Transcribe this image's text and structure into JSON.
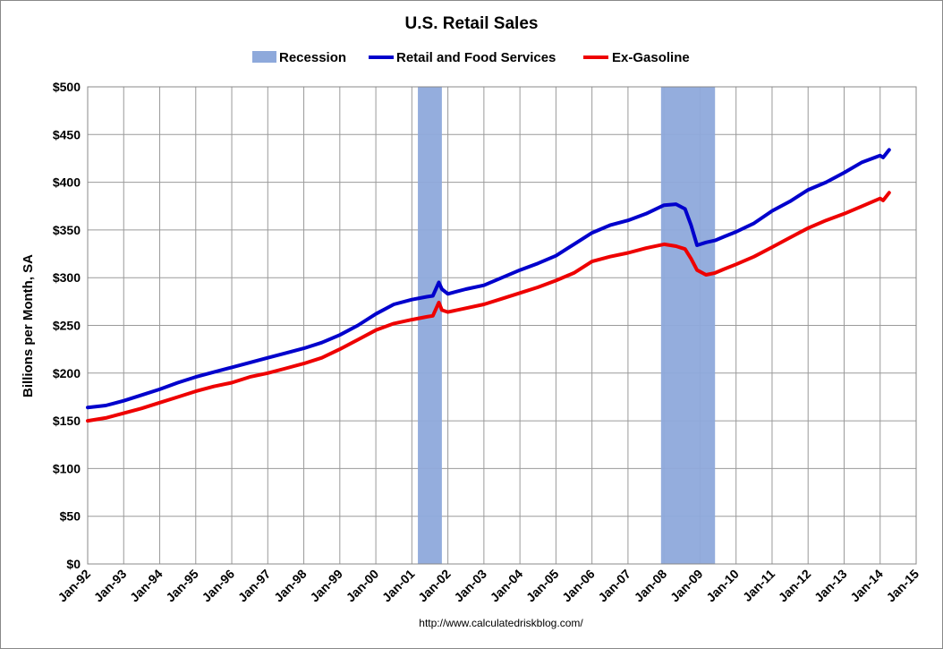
{
  "chart_data": {
    "type": "line",
    "title": "U.S. Retail Sales",
    "ylabel": "Billions per Month, SA",
    "xlabel": "",
    "source": "http://www.calculatedriskblog.com/",
    "ylim": [
      0,
      500
    ],
    "yticks": [
      0,
      50,
      100,
      150,
      200,
      250,
      300,
      350,
      400,
      450,
      500
    ],
    "ytick_labels": [
      "$0",
      "$50",
      "$100",
      "$150",
      "$200",
      "$250",
      "$300",
      "$350",
      "$400",
      "$450",
      "$500"
    ],
    "xlim": [
      "1992-01",
      "2015-01"
    ],
    "xtick_labels": [
      "Jan-92",
      "Jan-93",
      "Jan-94",
      "Jan-95",
      "Jan-96",
      "Jan-97",
      "Jan-98",
      "Jan-99",
      "Jan-00",
      "Jan-01",
      "Jan-02",
      "Jan-03",
      "Jan-04",
      "Jan-05",
      "Jan-06",
      "Jan-07",
      "Jan-08",
      "Jan-09",
      "Jan-10",
      "Jan-11",
      "Jan-12",
      "Jan-13",
      "Jan-14",
      "Jan-15"
    ],
    "grid": true,
    "legend_position": "top",
    "legend": [
      {
        "name": "Recession",
        "kind": "band",
        "color": "#8EA9DB"
      },
      {
        "name": "Retail and Food Services",
        "kind": "line",
        "color": "#0000CC"
      },
      {
        "name": "Ex-Gasoline",
        "kind": "line",
        "color": "#EE0000"
      }
    ],
    "recessions": [
      {
        "start": "2001-03",
        "end": "2001-11"
      },
      {
        "start": "2007-12",
        "end": "2009-06"
      }
    ],
    "series": [
      {
        "name": "Retail and Food Services",
        "color": "#0000CC",
        "points": [
          [
            "1992-01",
            164
          ],
          [
            "1992-07",
            166
          ],
          [
            "1993-01",
            171
          ],
          [
            "1993-07",
            177
          ],
          [
            "1994-01",
            183
          ],
          [
            "1994-07",
            190
          ],
          [
            "1995-01",
            196
          ],
          [
            "1995-07",
            201
          ],
          [
            "1996-01",
            206
          ],
          [
            "1996-07",
            211
          ],
          [
            "1997-01",
            216
          ],
          [
            "1997-07",
            221
          ],
          [
            "1998-01",
            226
          ],
          [
            "1998-07",
            232
          ],
          [
            "1999-01",
            240
          ],
          [
            "1999-07",
            250
          ],
          [
            "2000-01",
            262
          ],
          [
            "2000-07",
            272
          ],
          [
            "2001-01",
            277
          ],
          [
            "2001-06",
            280
          ],
          [
            "2001-08",
            281
          ],
          [
            "2001-10",
            295
          ],
          [
            "2001-11",
            288
          ],
          [
            "2002-01",
            283
          ],
          [
            "2002-07",
            288
          ],
          [
            "2003-01",
            292
          ],
          [
            "2003-07",
            300
          ],
          [
            "2004-01",
            308
          ],
          [
            "2004-07",
            315
          ],
          [
            "2005-01",
            323
          ],
          [
            "2005-07",
            335
          ],
          [
            "2006-01",
            347
          ],
          [
            "2006-07",
            355
          ],
          [
            "2007-01",
            360
          ],
          [
            "2007-07",
            367
          ],
          [
            "2008-01",
            376
          ],
          [
            "2008-05",
            377
          ],
          [
            "2008-08",
            372
          ],
          [
            "2008-10",
            355
          ],
          [
            "2008-12",
            334
          ],
          [
            "2009-03",
            337
          ],
          [
            "2009-06",
            339
          ],
          [
            "2009-09",
            343
          ],
          [
            "2010-01",
            348
          ],
          [
            "2010-07",
            357
          ],
          [
            "2011-01",
            370
          ],
          [
            "2011-07",
            380
          ],
          [
            "2012-01",
            392
          ],
          [
            "2012-07",
            400
          ],
          [
            "2013-01",
            410
          ],
          [
            "2013-07",
            421
          ],
          [
            "2014-01",
            428
          ],
          [
            "2014-02",
            426
          ],
          [
            "2014-04",
            434
          ]
        ]
      },
      {
        "name": "Ex-Gasoline",
        "color": "#EE0000",
        "points": [
          [
            "1992-01",
            150
          ],
          [
            "1992-07",
            153
          ],
          [
            "1993-01",
            158
          ],
          [
            "1993-07",
            163
          ],
          [
            "1994-01",
            169
          ],
          [
            "1994-07",
            175
          ],
          [
            "1995-01",
            181
          ],
          [
            "1995-07",
            186
          ],
          [
            "1996-01",
            190
          ],
          [
            "1996-07",
            196
          ],
          [
            "1997-01",
            200
          ],
          [
            "1997-07",
            205
          ],
          [
            "1998-01",
            210
          ],
          [
            "1998-07",
            216
          ],
          [
            "1999-01",
            225
          ],
          [
            "1999-07",
            235
          ],
          [
            "2000-01",
            245
          ],
          [
            "2000-07",
            252
          ],
          [
            "2001-01",
            256
          ],
          [
            "2001-06",
            259
          ],
          [
            "2001-08",
            260
          ],
          [
            "2001-10",
            274
          ],
          [
            "2001-11",
            266
          ],
          [
            "2002-01",
            264
          ],
          [
            "2002-07",
            268
          ],
          [
            "2003-01",
            272
          ],
          [
            "2003-07",
            278
          ],
          [
            "2004-01",
            284
          ],
          [
            "2004-07",
            290
          ],
          [
            "2005-01",
            297
          ],
          [
            "2005-07",
            305
          ],
          [
            "2006-01",
            317
          ],
          [
            "2006-07",
            322
          ],
          [
            "2007-01",
            326
          ],
          [
            "2007-07",
            331
          ],
          [
            "2008-01",
            335
          ],
          [
            "2008-05",
            333
          ],
          [
            "2008-08",
            330
          ],
          [
            "2008-10",
            320
          ],
          [
            "2008-12",
            308
          ],
          [
            "2009-03",
            303
          ],
          [
            "2009-06",
            305
          ],
          [
            "2009-09",
            309
          ],
          [
            "2010-01",
            314
          ],
          [
            "2010-07",
            322
          ],
          [
            "2011-01",
            332
          ],
          [
            "2011-07",
            342
          ],
          [
            "2012-01",
            352
          ],
          [
            "2012-07",
            360
          ],
          [
            "2013-01",
            367
          ],
          [
            "2013-07",
            375
          ],
          [
            "2014-01",
            383
          ],
          [
            "2014-02",
            381
          ],
          [
            "2014-04",
            389
          ]
        ]
      }
    ]
  }
}
